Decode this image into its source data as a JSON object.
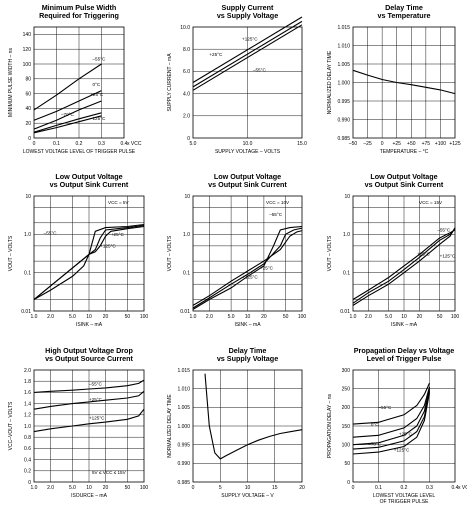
{
  "chart_data": [
    {
      "type": "line",
      "title": "Minimum Pulse Width\nRequired for Triggering",
      "xlabel": "LOWEST VOLTAGE LEVEL OF TRIGGER PULSE",
      "ylabel": "MINIMUM PULSE WIDTH – ns",
      "xlim": [
        0,
        0.4
      ],
      "ylim": [
        0,
        150
      ],
      "xscale": "linear",
      "yscale": "linear",
      "xticks": [
        "0",
        "0.1",
        "0.2",
        "0.3",
        "0.4"
      ],
      "xunit": "x VCC",
      "yticks": [
        "0",
        "20",
        "40",
        "60",
        "80",
        "100",
        "120",
        "140"
      ],
      "series": [
        {
          "name": "–55°C",
          "x": [
            0,
            0.1,
            0.2,
            0.3
          ],
          "y": [
            38,
            58,
            80,
            100
          ]
        },
        {
          "name": "0°C",
          "x": [
            0,
            0.1,
            0.2,
            0.3
          ],
          "y": [
            24,
            36,
            50,
            64
          ]
        },
        {
          "name": "+25°C",
          "x": [
            0,
            0.1,
            0.2,
            0.3
          ],
          "y": [
            12,
            24,
            38,
            50
          ]
        },
        {
          "name": "–70°C",
          "x": [
            0,
            0.1,
            0.2,
            0.3
          ],
          "y": [
            8,
            17,
            26,
            34
          ]
        },
        {
          "name": "125°C",
          "x": [
            0,
            0.1,
            0.2,
            0.3
          ],
          "y": [
            7,
            14,
            22,
            30
          ]
        }
      ]
    },
    {
      "type": "line",
      "title": "Supply Current\nvs Supply Voltage",
      "xlabel": "SUPPLY VOLTAGE – VOLTS",
      "ylabel": "SUPPLY CURRENT – mA",
      "xlim": [
        5,
        15
      ],
      "ylim": [
        0,
        10
      ],
      "xscale": "linear",
      "yscale": "linear",
      "xticks": [
        "5.0",
        "10.0",
        "15.0"
      ],
      "yticks": [
        "0",
        "2.0",
        "4.0",
        "6.0",
        "8.0",
        "10.0"
      ],
      "series": [
        {
          "name": "+125°C",
          "x": [
            5,
            15
          ],
          "y": [
            4.3,
            10.2
          ]
        },
        {
          "name": "+25°C",
          "x": [
            5,
            15
          ],
          "y": [
            4.6,
            10.5
          ]
        },
        {
          "name": "–55°C",
          "x": [
            5,
            15
          ],
          "y": [
            5.0,
            10.9
          ]
        }
      ]
    },
    {
      "type": "line",
      "title": "Delay Time\nvs Temperature",
      "xlabel": "TEMPERATURE – °C",
      "ylabel": "NORMALIZED DELAY TIME",
      "xlim": [
        -50,
        125
      ],
      "ylim": [
        0.985,
        1.015
      ],
      "xscale": "linear",
      "yscale": "linear",
      "xticks": [
        "–50",
        "–25",
        "0",
        "+25",
        "+50",
        "+75",
        "+100",
        "+125"
      ],
      "yticks": [
        "0.985",
        "0.990",
        "0.995",
        "1.000",
        "1.005",
        "1.010",
        "1.015"
      ],
      "series": [
        {
          "name": "",
          "x": [
            -50,
            -25,
            0,
            25,
            50,
            75,
            100,
            125
          ],
          "y": [
            1.0033,
            1.002,
            1.0008,
            1.0,
            0.9994,
            0.9987,
            0.998,
            0.997
          ]
        }
      ]
    },
    {
      "type": "line",
      "title": "Low Output Voltage\nvs Output Sink Current",
      "xlabel": "ISINK – mA",
      "ylabel": "VOUT – VOLTS",
      "xlim": [
        1,
        100
      ],
      "ylim": [
        0.01,
        10
      ],
      "xscale": "log",
      "yscale": "log",
      "xticks": [
        "1.0",
        "2.0",
        "5.0",
        "10",
        "20",
        "50",
        "100"
      ],
      "yticks": [
        "0.01",
        "0.1",
        "1.0",
        "10"
      ],
      "annotation": "VCC = 5V",
      "series": [
        {
          "name": "–55°C",
          "x": [
            1,
            2,
            5,
            8,
            10,
            13,
            20,
            50,
            100
          ],
          "y": [
            0.02,
            0.035,
            0.08,
            0.15,
            0.3,
            1.2,
            1.5,
            1.6,
            1.8
          ]
        },
        {
          "name": "+25°C",
          "x": [
            1,
            10,
            13,
            16,
            20,
            50,
            100
          ],
          "y": [
            0.02,
            0.3,
            0.4,
            0.8,
            1.3,
            1.5,
            1.7
          ]
        },
        {
          "name": "+125°C",
          "x": [
            1,
            10,
            13,
            16,
            20,
            25,
            50,
            100
          ],
          "y": [
            0.02,
            0.3,
            0.35,
            0.5,
            0.9,
            1.2,
            1.4,
            1.6
          ]
        }
      ]
    },
    {
      "type": "line",
      "title": "Low Output Voltage\nvs Output Sink Current",
      "xlabel": "ISINK – mA",
      "ylabel": "VOUT – VOLTS",
      "xlim": [
        1,
        100
      ],
      "ylim": [
        0.01,
        10
      ],
      "xscale": "log",
      "yscale": "log",
      "xticks": [
        "1.0",
        "2.0",
        "5.0",
        "10",
        "20",
        "50",
        "100"
      ],
      "yticks": [
        "0.01",
        "0.1",
        "1.0",
        "10"
      ],
      "annotation": "VCC = 10V",
      "series": [
        {
          "name": "–55°C",
          "x": [
            1,
            2,
            5,
            10,
            20,
            30,
            40,
            60,
            100
          ],
          "y": [
            0.011,
            0.02,
            0.04,
            0.08,
            0.15,
            0.5,
            1.3,
            1.5,
            1.6
          ]
        },
        {
          "name": "+25°C",
          "x": [
            1,
            2,
            5,
            10,
            20,
            40,
            50,
            70,
            100
          ],
          "y": [
            0.012,
            0.022,
            0.05,
            0.09,
            0.17,
            0.5,
            1.0,
            1.3,
            1.45
          ]
        },
        {
          "name": "+125°C",
          "x": [
            1,
            2,
            5,
            10,
            20,
            40,
            60,
            80,
            100
          ],
          "y": [
            0.014,
            0.025,
            0.06,
            0.11,
            0.2,
            0.4,
            0.9,
            1.15,
            1.25
          ]
        }
      ]
    },
    {
      "type": "line",
      "title": "Low Output Voltage\nvs Output Sink Current",
      "xlabel": "ISINK – mA",
      "ylabel": "VOUT – VOLTS",
      "xlim": [
        1,
        100
      ],
      "ylim": [
        0.01,
        10
      ],
      "xscale": "log",
      "yscale": "log",
      "xticks": [
        "1.0",
        "2.0",
        "5.0",
        "10",
        "20",
        "50",
        "100"
      ],
      "yticks": [
        "0.01",
        "0.1",
        "1.0",
        "10"
      ],
      "annotation": "VCC = 15V",
      "series": [
        {
          "name": "–55°C",
          "x": [
            1,
            2,
            5,
            10,
            20,
            50,
            80,
            100
          ],
          "y": [
            0.014,
            0.025,
            0.05,
            0.1,
            0.2,
            0.55,
            0.9,
            1.5
          ]
        },
        {
          "name": "+25°C",
          "x": [
            1,
            2,
            5,
            10,
            20,
            50,
            80,
            100
          ],
          "y": [
            0.016,
            0.03,
            0.06,
            0.12,
            0.25,
            0.7,
            1.0,
            1.4
          ]
        },
        {
          "name": "+125°C",
          "x": [
            1,
            2,
            5,
            10,
            20,
            50,
            80,
            100
          ],
          "y": [
            0.02,
            0.035,
            0.075,
            0.15,
            0.3,
            0.8,
            1.1,
            1.3
          ]
        }
      ]
    },
    {
      "type": "line",
      "title": "High Output Voltage Drop\nvs Output Source Current",
      "xlabel": "ISOURCE – mA",
      "ylabel": "VCC–VOUT – VOLTS",
      "xlim": [
        1,
        100
      ],
      "ylim": [
        0,
        2.0
      ],
      "xscale": "log",
      "yscale": "linear",
      "xticks": [
        "1.0",
        "2.0",
        "5.0",
        "10",
        "20",
        "50",
        "100"
      ],
      "yticks": [
        "0",
        "0.2",
        "0.4",
        "0.6",
        "0.8",
        "1.0",
        "1.2",
        "1.4",
        "1.6",
        "1.8",
        "2.0"
      ],
      "annotation": "5V ≤ VCC ≤ 15V",
      "series": [
        {
          "name": "–55°C",
          "x": [
            1,
            2,
            5,
            10,
            20,
            50,
            80,
            100
          ],
          "y": [
            1.6,
            1.62,
            1.64,
            1.66,
            1.68,
            1.72,
            1.76,
            1.82
          ]
        },
        {
          "name": "+25°C",
          "x": [
            1,
            2,
            5,
            10,
            20,
            50,
            80,
            100
          ],
          "y": [
            1.3,
            1.35,
            1.4,
            1.43,
            1.46,
            1.5,
            1.54,
            1.62
          ]
        },
        {
          "name": "+125°C",
          "x": [
            1,
            2,
            5,
            10,
            20,
            50,
            80,
            100
          ],
          "y": [
            0.9,
            0.95,
            1.0,
            1.04,
            1.07,
            1.12,
            1.18,
            1.3
          ]
        }
      ]
    },
    {
      "type": "line",
      "title": "Delay Time\nvs Supply Voltage",
      "xlabel": "SUPPLY VOLTAGE – V",
      "ylabel": "NORMALIZED DELAY TIME",
      "xlim": [
        0,
        20
      ],
      "ylim": [
        0.985,
        1.015
      ],
      "xscale": "linear",
      "yscale": "linear",
      "xticks": [
        "0",
        "5",
        "10",
        "15",
        "20"
      ],
      "yticks": [
        "0.985",
        "0.990",
        "0.995",
        "1.000",
        "1.005",
        "1.010",
        "1.015"
      ],
      "series": [
        {
          "name": "",
          "x": [
            2.2,
            3,
            4,
            5,
            6,
            8,
            10,
            12,
            14,
            16,
            18,
            20
          ],
          "y": [
            1.014,
            1.0,
            0.9928,
            0.9912,
            0.992,
            0.9935,
            0.995,
            0.9962,
            0.9972,
            0.998,
            0.9985,
            0.999
          ]
        }
      ]
    },
    {
      "type": "line",
      "title": "Propagation Delay vs Voltage\nLevel of Trigger Pulse",
      "xlabel": "LOWEST VOLTAGE LEVEL\nOF TRIGGER PULSE",
      "ylabel": "PROPAGATION DELAY – ns",
      "xlim": [
        0,
        0.4
      ],
      "ylim": [
        0,
        300
      ],
      "xscale": "linear",
      "yscale": "linear",
      "xticks": [
        "0",
        "0.1",
        "0.2",
        "0.3",
        "0.4"
      ],
      "xunit": "x VCC",
      "yticks": [
        "0",
        "50",
        "100",
        "150",
        "200",
        "250",
        "300"
      ],
      "series": [
        {
          "name": "–55°C",
          "x": [
            0,
            0.1,
            0.2,
            0.25,
            0.28,
            0.3
          ],
          "y": [
            155,
            160,
            180,
            205,
            235,
            265
          ]
        },
        {
          "name": "0°C",
          "x": [
            0,
            0.1,
            0.2,
            0.25,
            0.28,
            0.3
          ],
          "y": [
            120,
            125,
            145,
            170,
            205,
            255
          ]
        },
        {
          "name": "+25°C",
          "x": [
            0,
            0.1,
            0.2,
            0.25,
            0.28,
            0.3
          ],
          "y": [
            100,
            105,
            125,
            150,
            190,
            250
          ]
        },
        {
          "name": "–70°C",
          "x": [
            0,
            0.1,
            0.2,
            0.25,
            0.28,
            0.3
          ],
          "y": [
            88,
            93,
            110,
            135,
            175,
            245
          ]
        },
        {
          "name": "+125°C",
          "x": [
            0,
            0.1,
            0.2,
            0.25,
            0.28,
            0.3
          ],
          "y": [
            75,
            80,
            95,
            120,
            165,
            240
          ]
        }
      ]
    }
  ]
}
